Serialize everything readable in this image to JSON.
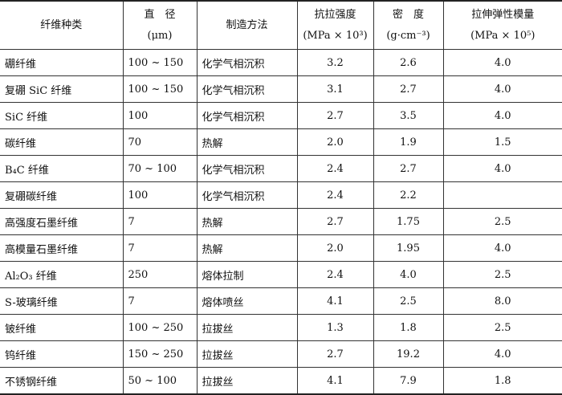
{
  "headers": [
    {
      "line1": "纤维种类",
      "line2": ""
    },
    {
      "line1": "直　径",
      "line2": "(μm)"
    },
    {
      "line1": "制造方法",
      "line2": ""
    },
    {
      "line1": "抗拉强度",
      "line2": "(MPa × 10³)"
    },
    {
      "line1": "密　度",
      "line2": "(g·cm⁻³)"
    },
    {
      "line1": "拉伸弹性模量",
      "line2": "(MPa × 10⁵)"
    }
  ],
  "rows": [
    [
      "硼纤维",
      "100 ~ 150",
      "化学气相沉积",
      "3.2",
      "2.6",
      "4.0"
    ],
    [
      "复硼 SiC 纤维",
      "100 ~ 150",
      "化学气相沉积",
      "3.1",
      "2.7",
      "4.0"
    ],
    [
      "SiC 纤维",
      "100",
      "化学气相沉积",
      "2.7",
      "3.5",
      "4.0"
    ],
    [
      "碳纤维",
      "70",
      "热解",
      "2.0",
      "1.9",
      "1.5"
    ],
    [
      "B₄C 纤维",
      "70 ~ 100",
      "化学气相沉积",
      "2.4",
      "2.7",
      "4.0"
    ],
    [
      "复硼碳纤维",
      "100",
      "化学气相沉积",
      "2.4",
      "2.2",
      ""
    ],
    [
      "高强度石墨纤维",
      "7",
      "热解",
      "2.7",
      "1.75",
      "2.5"
    ],
    [
      "高模量石墨纤维",
      "7",
      "热解",
      "2.0",
      "1.95",
      "4.0"
    ],
    [
      "Al₂O₃ 纤维",
      "250",
      "熔体拉制",
      "2.4",
      "4.0",
      "2.5"
    ],
    [
      "S-玻璃纤维",
      "7",
      "熔体喷丝",
      "4.1",
      "2.5",
      "8.0"
    ],
    [
      "铍纤维",
      "100 ~ 250",
      "拉拔丝",
      "1.3",
      "1.8",
      "2.5"
    ],
    [
      "钨纤维",
      "150 ~ 250",
      "拉拔丝",
      "2.7",
      "19.2",
      "4.0"
    ],
    [
      "不锈钢纤维",
      "50 ~ 100",
      "拉拔丝",
      "4.1",
      "7.9",
      "1.8"
    ]
  ]
}
